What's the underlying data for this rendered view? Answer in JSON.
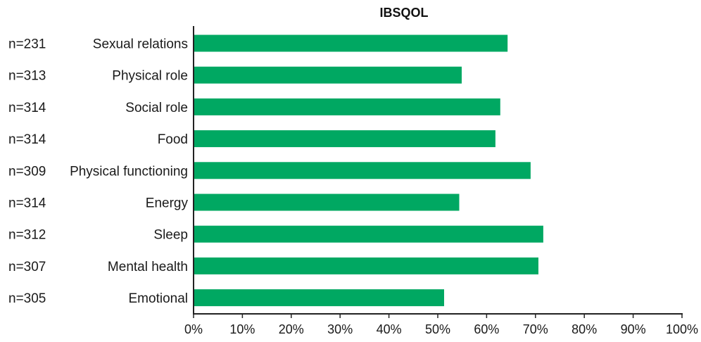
{
  "chart_data": {
    "type": "bar",
    "orientation": "horizontal",
    "title": "IBSQOL",
    "xlabel": "",
    "ylabel": "",
    "xlim": [
      0,
      100
    ],
    "x_ticks": [
      "0%",
      "10%",
      "20%",
      "30%",
      "40%",
      "50%",
      "60%",
      "70%",
      "80%",
      "90%",
      "100%"
    ],
    "categories": [
      "Sexual relations",
      "Physical role",
      "Social role",
      "Food",
      "Physical functioning",
      "Energy",
      "Sleep",
      "Mental health",
      "Emotional"
    ],
    "sample_sizes": [
      "n=231",
      "n=313",
      "n=314",
      "n=314",
      "n=309",
      "n=314",
      "n=312",
      "n=307",
      "n=305"
    ],
    "values": [
      64.3,
      54.9,
      62.8,
      61.8,
      69.0,
      54.4,
      71.6,
      70.6,
      51.3
    ],
    "bar_color": "#00A862",
    "grid": false,
    "legend": "none"
  }
}
